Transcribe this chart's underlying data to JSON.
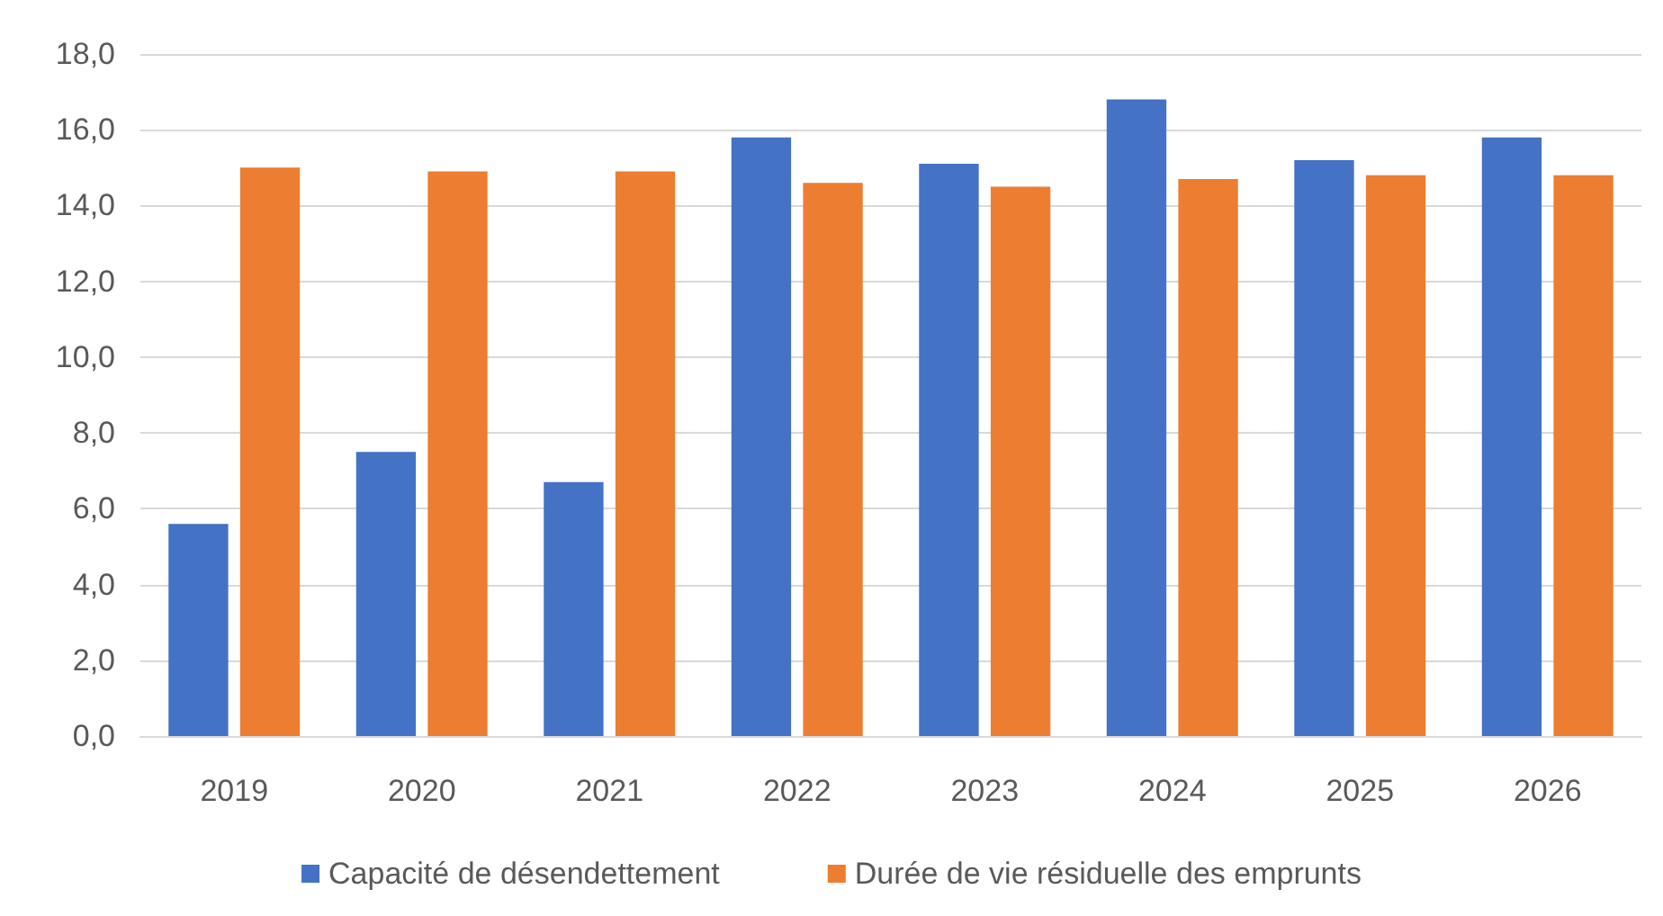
{
  "chart_data": {
    "type": "bar",
    "categories": [
      "2019",
      "2020",
      "2021",
      "2022",
      "2023",
      "2024",
      "2025",
      "2026"
    ],
    "series": [
      {
        "name": "Capacité de désendettement",
        "color": "#4472c4",
        "values": [
          5.6,
          7.5,
          6.7,
          15.8,
          15.1,
          16.8,
          15.2,
          15.8
        ]
      },
      {
        "name": "Durée de vie résiduelle des emprunts",
        "color": "#ed7d31",
        "values": [
          15.0,
          14.9,
          14.9,
          14.6,
          14.5,
          14.7,
          14.8,
          14.8
        ]
      }
    ],
    "ylim": [
      0,
      18
    ],
    "yticks": [
      {
        "value": 0,
        "label": "0,0"
      },
      {
        "value": 2,
        "label": "2,0"
      },
      {
        "value": 4,
        "label": "4,0"
      },
      {
        "value": 6,
        "label": "6,0"
      },
      {
        "value": 8,
        "label": "8,0"
      },
      {
        "value": 10,
        "label": "10,0"
      },
      {
        "value": 12,
        "label": "12,0"
      },
      {
        "value": 14,
        "label": "14,0"
      },
      {
        "value": 16,
        "label": "16,0"
      },
      {
        "value": 18,
        "label": "18,0"
      }
    ],
    "grid": "y",
    "legend": "bottom"
  }
}
